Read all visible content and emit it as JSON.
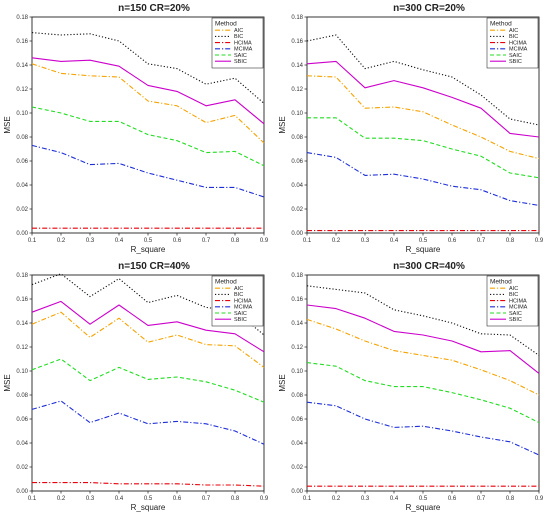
{
  "chart_data": [
    {
      "type": "line",
      "title": "n=150 CR=20%",
      "xlabel": "R_square",
      "ylabel": "MSE",
      "xlim": [
        0.1,
        0.9
      ],
      "ylim": [
        0,
        0.18
      ],
      "x": [
        0.1,
        0.2,
        0.3,
        0.4,
        0.5,
        0.6,
        0.7,
        0.8,
        0.9
      ],
      "xticks": [
        "0.1",
        "0.2",
        "0.3",
        "0.4",
        "0.5",
        "0.6",
        "0.7",
        "0.8",
        "0.9"
      ],
      "yticks": [
        "0.00",
        "0.02",
        "0.04",
        "0.06",
        "0.08",
        "0.10",
        "0.12",
        "0.14",
        "0.16",
        "0.18"
      ],
      "legend_title": "Method",
      "legend_position": "top-right",
      "series": [
        {
          "name": "AIC",
          "values": [
            0.141,
            0.133,
            0.131,
            0.13,
            0.11,
            0.106,
            0.092,
            0.098,
            0.075
          ]
        },
        {
          "name": "BIC",
          "values": [
            0.167,
            0.165,
            0.166,
            0.16,
            0.141,
            0.137,
            0.124,
            0.129,
            0.108
          ]
        },
        {
          "name": "HCIMA",
          "values": [
            0.004,
            0.004,
            0.004,
            0.004,
            0.004,
            0.004,
            0.004,
            0.004,
            0.004
          ]
        },
        {
          "name": "MCIMA",
          "values": [
            0.073,
            0.067,
            0.057,
            0.058,
            0.05,
            0.044,
            0.038,
            0.038,
            0.03
          ]
        },
        {
          "name": "SAIC",
          "values": [
            0.105,
            0.1,
            0.093,
            0.093,
            0.082,
            0.077,
            0.067,
            0.068,
            0.056
          ]
        },
        {
          "name": "SBIC",
          "values": [
            0.146,
            0.143,
            0.144,
            0.139,
            0.123,
            0.118,
            0.106,
            0.111,
            0.091
          ]
        }
      ]
    },
    {
      "type": "line",
      "title": "n=300 CR=20%",
      "xlabel": "R_square",
      "ylabel": "MSE",
      "xlim": [
        0.1,
        0.9
      ],
      "ylim": [
        0,
        0.18
      ],
      "x": [
        0.1,
        0.2,
        0.3,
        0.4,
        0.5,
        0.6,
        0.7,
        0.8,
        0.9
      ],
      "xticks": [
        "0.1",
        "0.2",
        "0.3",
        "0.4",
        "0.5",
        "0.6",
        "0.7",
        "0.8",
        "0.9"
      ],
      "yticks": [
        "0.00",
        "0.02",
        "0.04",
        "0.06",
        "0.08",
        "0.10",
        "0.12",
        "0.14",
        "0.16",
        "0.18"
      ],
      "legend_title": "Method",
      "legend_position": "top-right",
      "series": [
        {
          "name": "AIC",
          "values": [
            0.131,
            0.13,
            0.104,
            0.105,
            0.101,
            0.09,
            0.08,
            0.068,
            0.062
          ]
        },
        {
          "name": "BIC",
          "values": [
            0.16,
            0.165,
            0.137,
            0.143,
            0.136,
            0.13,
            0.115,
            0.095,
            0.09
          ]
        },
        {
          "name": "HCIMA",
          "values": [
            0.002,
            0.002,
            0.002,
            0.002,
            0.002,
            0.002,
            0.002,
            0.002,
            0.002
          ]
        },
        {
          "name": "MCIMA",
          "values": [
            0.067,
            0.063,
            0.048,
            0.049,
            0.045,
            0.039,
            0.036,
            0.027,
            0.023
          ]
        },
        {
          "name": "SAIC",
          "values": [
            0.096,
            0.096,
            0.079,
            0.079,
            0.077,
            0.07,
            0.064,
            0.05,
            0.046
          ]
        },
        {
          "name": "SBIC",
          "values": [
            0.141,
            0.143,
            0.121,
            0.127,
            0.121,
            0.113,
            0.104,
            0.083,
            0.08
          ]
        }
      ]
    },
    {
      "type": "line",
      "title": "n=150 CR=40%",
      "xlabel": "R_square",
      "ylabel": "MSE",
      "xlim": [
        0.1,
        0.9
      ],
      "ylim": [
        0,
        0.18
      ],
      "x": [
        0.1,
        0.2,
        0.3,
        0.4,
        0.5,
        0.6,
        0.7,
        0.8,
        0.9
      ],
      "xticks": [
        "0.1",
        "0.2",
        "0.3",
        "0.4",
        "0.5",
        "0.6",
        "0.7",
        "0.8",
        "0.9"
      ],
      "yticks": [
        "0.00",
        "0.02",
        "0.04",
        "0.06",
        "0.08",
        "0.10",
        "0.12",
        "0.14",
        "0.16",
        "0.18"
      ],
      "legend_title": "Method",
      "legend_position": "top-right",
      "series": [
        {
          "name": "AIC",
          "values": [
            0.139,
            0.149,
            0.128,
            0.144,
            0.124,
            0.13,
            0.122,
            0.121,
            0.103
          ]
        },
        {
          "name": "BIC",
          "values": [
            0.172,
            0.181,
            0.162,
            0.177,
            0.157,
            0.163,
            0.153,
            0.15,
            0.13
          ]
        },
        {
          "name": "HCIMA",
          "values": [
            0.007,
            0.007,
            0.007,
            0.006,
            0.006,
            0.006,
            0.005,
            0.005,
            0.004
          ]
        },
        {
          "name": "MCIMA",
          "values": [
            0.068,
            0.075,
            0.057,
            0.065,
            0.056,
            0.058,
            0.056,
            0.05,
            0.039
          ]
        },
        {
          "name": "SAIC",
          "values": [
            0.101,
            0.11,
            0.092,
            0.103,
            0.093,
            0.095,
            0.091,
            0.084,
            0.074
          ]
        },
        {
          "name": "SBIC",
          "values": [
            0.149,
            0.158,
            0.139,
            0.155,
            0.138,
            0.141,
            0.134,
            0.131,
            0.116
          ]
        }
      ]
    },
    {
      "type": "line",
      "title": "n=300 CR=40%",
      "xlabel": "R_square",
      "ylabel": "MSE",
      "xlim": [
        0.1,
        0.9
      ],
      "ylim": [
        0,
        0.18
      ],
      "x": [
        0.1,
        0.2,
        0.3,
        0.4,
        0.5,
        0.6,
        0.7,
        0.8,
        0.9
      ],
      "xticks": [
        "0.1",
        "0.2",
        "0.3",
        "0.4",
        "0.5",
        "0.6",
        "0.7",
        "0.8",
        "0.9"
      ],
      "yticks": [
        "0.00",
        "0.02",
        "0.04",
        "0.06",
        "0.08",
        "0.10",
        "0.12",
        "0.14",
        "0.16",
        "0.18"
      ],
      "legend_title": "Method",
      "legend_position": "top-right",
      "series": [
        {
          "name": "AIC",
          "values": [
            0.143,
            0.135,
            0.125,
            0.117,
            0.113,
            0.109,
            0.101,
            0.092,
            0.08
          ]
        },
        {
          "name": "BIC",
          "values": [
            0.171,
            0.168,
            0.165,
            0.151,
            0.146,
            0.14,
            0.131,
            0.13,
            0.113
          ]
        },
        {
          "name": "HCIMA",
          "values": [
            0.004,
            0.004,
            0.004,
            0.004,
            0.004,
            0.004,
            0.004,
            0.004,
            0.004
          ]
        },
        {
          "name": "MCIMA",
          "values": [
            0.074,
            0.071,
            0.06,
            0.053,
            0.054,
            0.05,
            0.045,
            0.041,
            0.03
          ]
        },
        {
          "name": "SAIC",
          "values": [
            0.107,
            0.104,
            0.092,
            0.087,
            0.087,
            0.082,
            0.076,
            0.069,
            0.057
          ]
        },
        {
          "name": "SBIC",
          "values": [
            0.155,
            0.152,
            0.144,
            0.133,
            0.13,
            0.125,
            0.116,
            0.117,
            0.098
          ]
        }
      ]
    }
  ],
  "style": {
    "series_colors": {
      "AIC": "#f5a300",
      "BIC": "#111111",
      "HCIMA": "#e8000b",
      "MCIMA": "#1f2fd8",
      "SAIC": "#22dd22",
      "SBIC": "#cc00cc"
    },
    "series_dash": {
      "AIC": "dash-dot",
      "BIC": "dotted",
      "HCIMA": "dash-dot",
      "MCIMA": "dash-dot",
      "SAIC": "dashed",
      "SBIC": "solid"
    },
    "axis_color": "#222222"
  }
}
